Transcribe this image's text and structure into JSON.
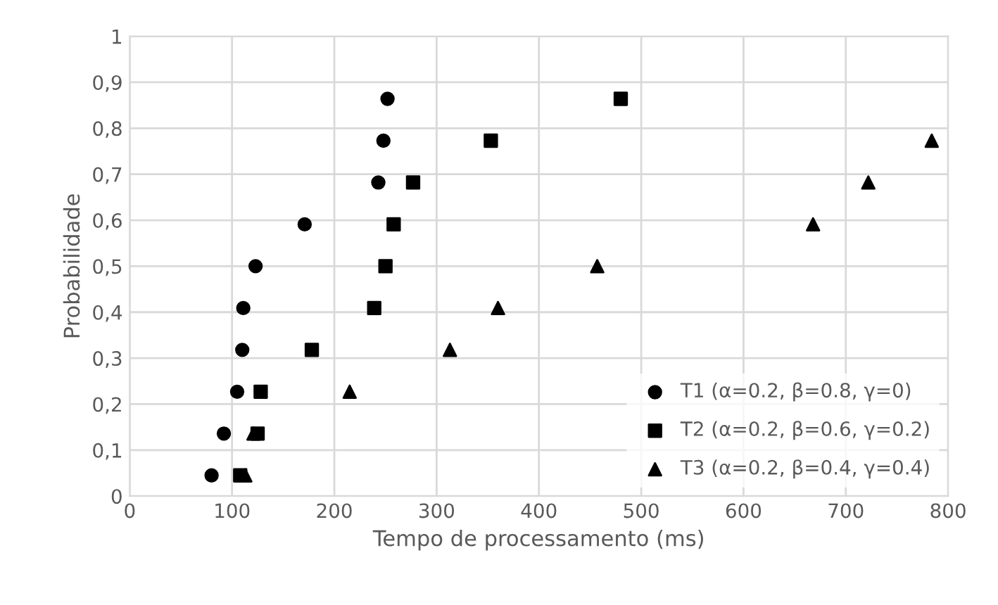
{
  "chart_data": {
    "type": "scatter",
    "xlabel": "Tempo de processamento (ms)",
    "ylabel": "Probabilidade",
    "xlim": [
      0,
      800
    ],
    "xticks": [
      0,
      100,
      200,
      300,
      400,
      500,
      600,
      700,
      800
    ],
    "ylim": [
      0,
      1
    ],
    "yticks": [
      {
        "value": 0,
        "label": "0"
      },
      {
        "value": 0.1,
        "label": "0,1"
      },
      {
        "value": 0.2,
        "label": "0,2"
      },
      {
        "value": 0.3,
        "label": "0,3"
      },
      {
        "value": 0.4,
        "label": "0,4"
      },
      {
        "value": 0.5,
        "label": "0,5"
      },
      {
        "value": 0.6,
        "label": "0,6"
      },
      {
        "value": 0.7,
        "label": "0,7"
      },
      {
        "value": 0.8,
        "label": "0,8"
      },
      {
        "value": 0.9,
        "label": "0,9"
      },
      {
        "value": 1,
        "label": "1"
      }
    ],
    "grid": true,
    "legend": "bottom right",
    "series": [
      {
        "name": "T1 (α=0.2, β=0.8, γ=0)",
        "color": "#000000",
        "marker": "circle",
        "x": [
          80,
          92,
          105,
          110,
          111,
          123,
          171,
          243,
          248,
          252
        ],
        "values": [
          0.045,
          0.136,
          0.227,
          0.318,
          0.409,
          0.5,
          0.591,
          0.682,
          0.773,
          0.864
        ]
      },
      {
        "name": "T2 (α=0.2, β=0.6, γ=0.2)",
        "color": "#000000",
        "marker": "square",
        "x": [
          108,
          125,
          128,
          178,
          239,
          250,
          258,
          277,
          353,
          480
        ],
        "values": [
          0.045,
          0.136,
          0.227,
          0.318,
          0.409,
          0.5,
          0.591,
          0.682,
          0.773,
          0.864
        ]
      },
      {
        "name": "T3 (α=0.2, β=0.4, γ=0.4)",
        "color": "#000000",
        "marker": "triangle",
        "x": [
          113,
          121,
          215,
          313,
          360,
          457,
          668,
          722,
          784
        ],
        "values": [
          0.045,
          0.136,
          0.227,
          0.318,
          0.409,
          0.5,
          0.591,
          0.682,
          0.773
        ]
      }
    ]
  }
}
